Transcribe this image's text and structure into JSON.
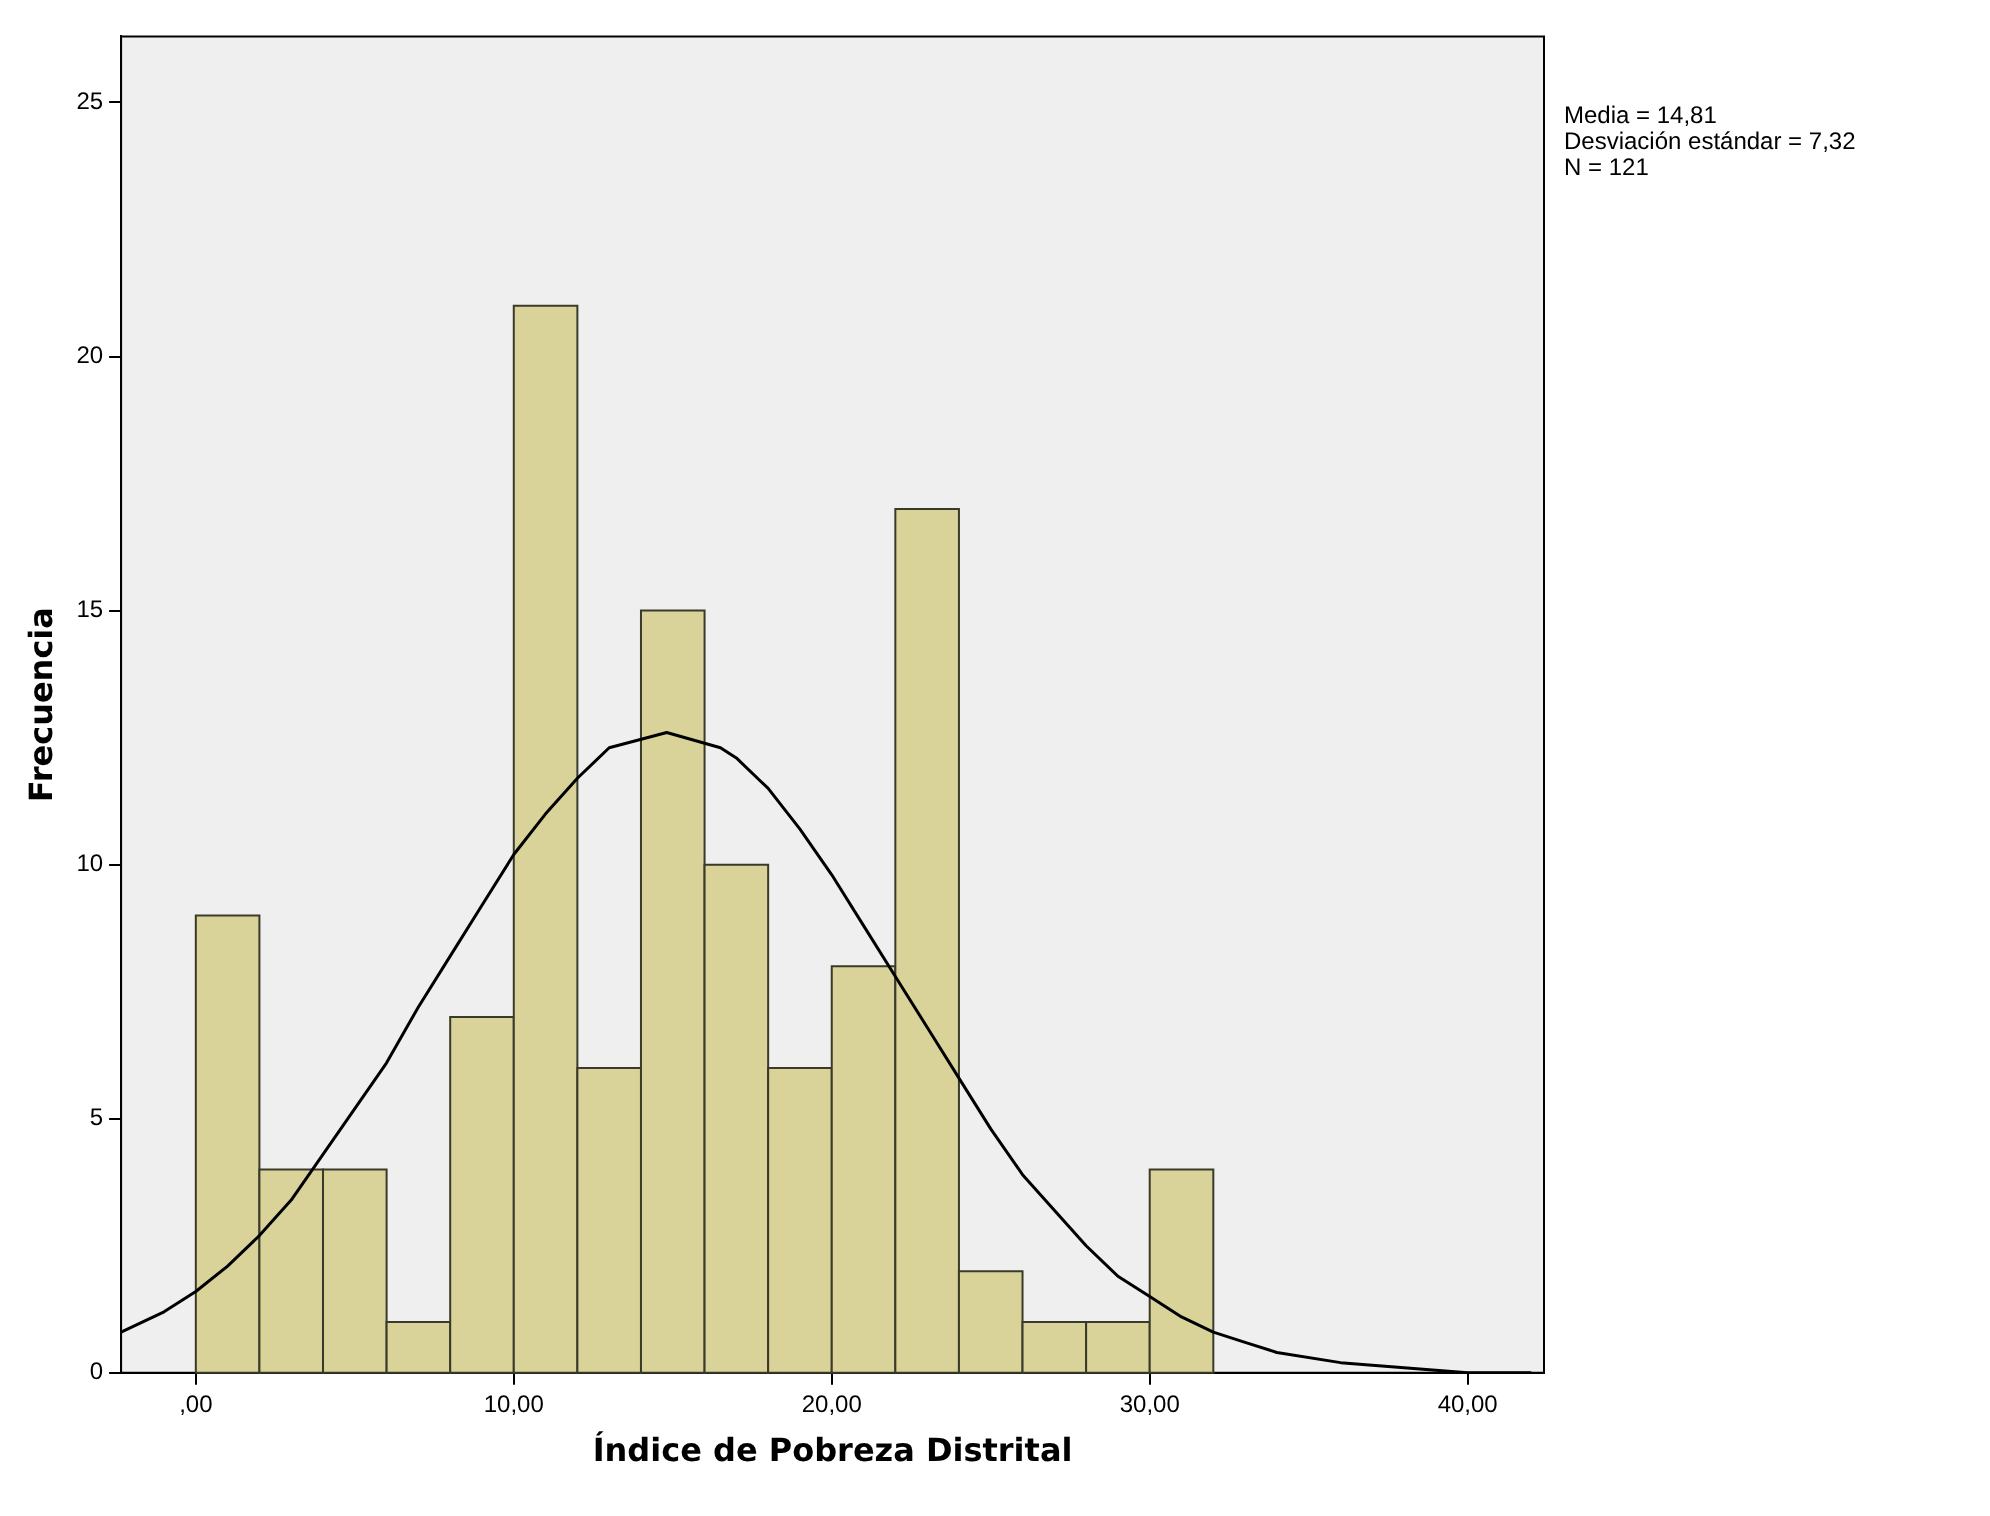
{
  "chart_data": {
    "type": "histogram",
    "xlabel": "Índice de Pobreza Distrital",
    "ylabel": "Frecuencia",
    "bins": [
      0,
      2,
      4,
      6,
      8,
      10,
      12,
      14,
      16,
      18,
      20,
      22,
      24,
      26,
      28,
      30,
      32
    ],
    "values": [
      9,
      4,
      4,
      1,
      7,
      21,
      6,
      15,
      10,
      6,
      8,
      17,
      2,
      1,
      1,
      4
    ],
    "color": "#d9d39a",
    "series": [
      {
        "type": "line",
        "color": "#000000",
        "x": [
          -2.35,
          -1,
          0,
          1,
          2,
          3,
          4,
          5,
          6,
          7,
          8,
          9,
          10,
          11,
          12,
          13,
          14.81,
          16.5,
          17,
          18,
          19,
          20,
          21,
          22,
          23,
          24,
          25,
          26,
          27,
          28,
          29,
          30,
          31,
          32,
          33,
          34,
          36,
          38,
          40,
          42
        ],
        "values": [
          0.8,
          1.2,
          1.6,
          2.1,
          2.7,
          3.4,
          4.3,
          5.2,
          6.1,
          7.2,
          8.2,
          9.2,
          10.2,
          11.0,
          11.7,
          12.3,
          12.6,
          12.3,
          12.1,
          11.5,
          10.7,
          9.8,
          8.8,
          7.8,
          6.8,
          5.8,
          4.8,
          3.9,
          3.2,
          2.5,
          1.9,
          1.5,
          1.1,
          0.8,
          0.6,
          0.4,
          0.2,
          0.1,
          0.0,
          0.0
        ]
      }
    ],
    "marker": "none",
    "line_style": "solid",
    "grid": false,
    "legend": false,
    "xlim": [
      -2.35,
      42.4
    ],
    "ylim": [
      0,
      26.3
    ],
    "xticks": [
      {
        "value": 0,
        "label": ",00"
      },
      {
        "value": 10,
        "label": "10,00"
      },
      {
        "value": 20,
        "label": "20,00"
      },
      {
        "value": 30,
        "label": "30,00"
      },
      {
        "value": 40,
        "label": "40,00"
      }
    ],
    "yticks": [
      0,
      5,
      10,
      15,
      20,
      25
    ],
    "annotations": [
      "Media = 14,81",
      "Desviación estándar = 7,32",
      "N = 121"
    ]
  }
}
